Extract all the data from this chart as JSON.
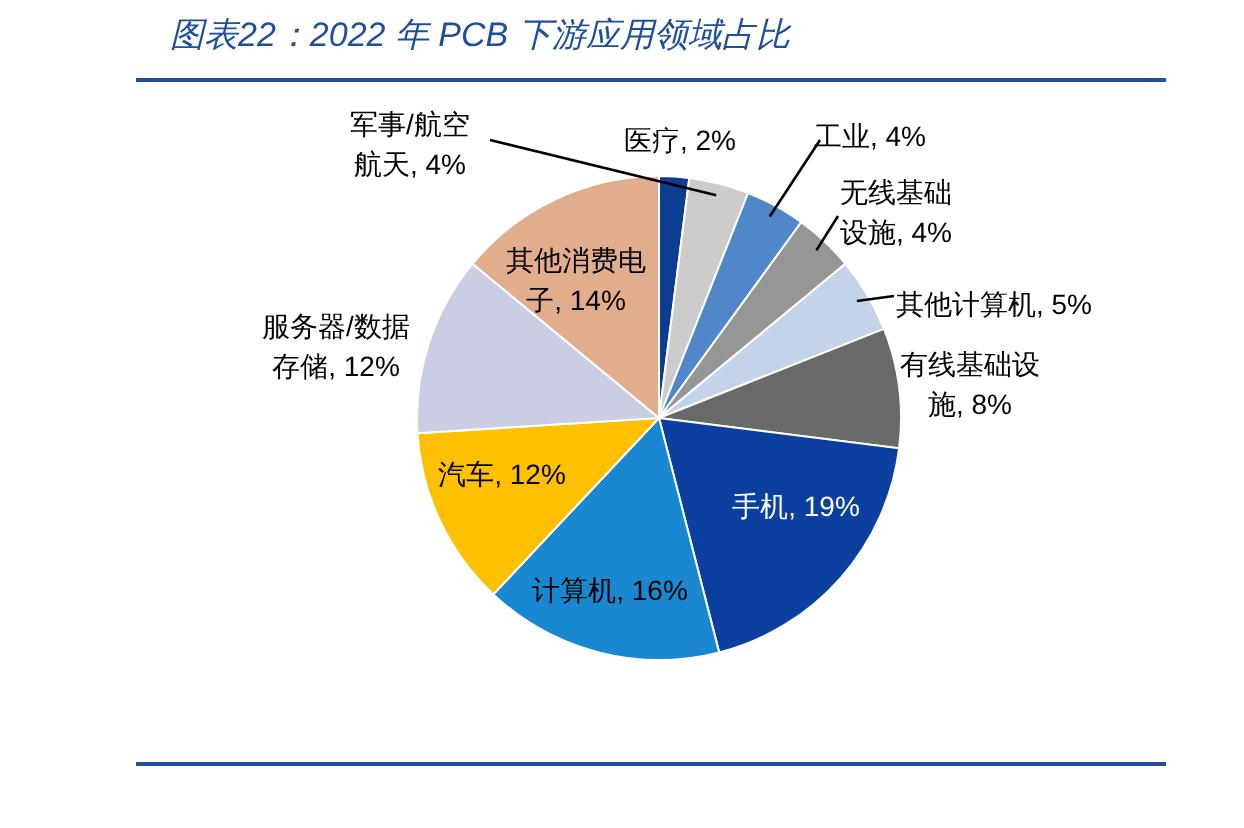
{
  "chart_data": {
    "type": "pie",
    "title": "图表22：2022 年 PCB 下游应用领域占比",
    "categories": [
      "医疗",
      "军事/航空航天",
      "工业",
      "无线基础设施",
      "其他计算机",
      "有线基础设施",
      "手机",
      "计算机",
      "汽车",
      "服务器/数据存储",
      "其他消费电子"
    ],
    "values": [
      2,
      4,
      4,
      4,
      5,
      8,
      19,
      16,
      12,
      12,
      14
    ],
    "colors": [
      "#0b3d91",
      "#cccccc",
      "#4f87c8",
      "#969696",
      "#c3d4ea",
      "#696969",
      "#0b3fa0",
      "#1a88d0",
      "#ffc000",
      "#cacde3",
      "#e2ad8d"
    ],
    "data_labels": true,
    "value_labels": [
      "2%",
      "4%",
      "4%",
      "4%",
      "5%",
      "8%",
      "19%",
      "16%",
      "12%",
      "12%",
      "14%"
    ]
  }
}
